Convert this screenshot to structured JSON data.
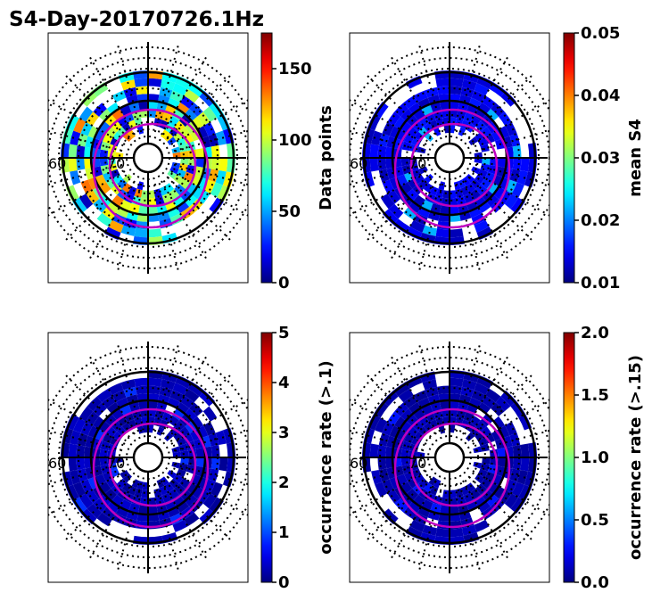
{
  "chart_data": {
    "type": "heatmap",
    "title": "S4-Day-20170726.1Hz",
    "colormap": "jet",
    "colors": {
      "grid": "#000000",
      "oval": "#c000c0",
      "background": "#ffffff"
    },
    "lat_labels": [
      "60",
      "70"
    ],
    "panels": [
      {
        "name": "data-points",
        "colorbar_label": "Data points",
        "vmin": 0,
        "vmax": 175,
        "ticks": [
          "0",
          "50",
          "100",
          "150"
        ],
        "tick_values": [
          0,
          50,
          100,
          150
        ],
        "typical_value": 70,
        "spread": 65
      },
      {
        "name": "mean-s4",
        "colorbar_label": "mean S4",
        "vmin": 0.01,
        "vmax": 0.05,
        "ticks": [
          "0.01",
          "0.02",
          "0.03",
          "0.04",
          "0.05"
        ],
        "tick_values": [
          0.01,
          0.02,
          0.03,
          0.04,
          0.05
        ],
        "typical_value": 0.012,
        "spread": 0.004
      },
      {
        "name": "occurrence-rate-01",
        "colorbar_label": "occurrence rate (>.1)",
        "vmin": 0,
        "vmax": 5,
        "ticks": [
          "0",
          "1",
          "2",
          "3",
          "4",
          "5"
        ],
        "tick_values": [
          0,
          1,
          2,
          3,
          4,
          5
        ],
        "typical_value": 0.1,
        "spread": 0.3
      },
      {
        "name": "occurrence-rate-015",
        "colorbar_label": "occurrence rate (>.15)",
        "vmin": 0,
        "vmax": 2,
        "ticks": [
          "0.0",
          "0.5",
          "1.0",
          "1.5",
          "2.0"
        ],
        "tick_values": [
          0,
          0.5,
          1.0,
          1.5,
          2.0
        ],
        "typical_value": 0.04,
        "spread": 0.1
      }
    ]
  }
}
